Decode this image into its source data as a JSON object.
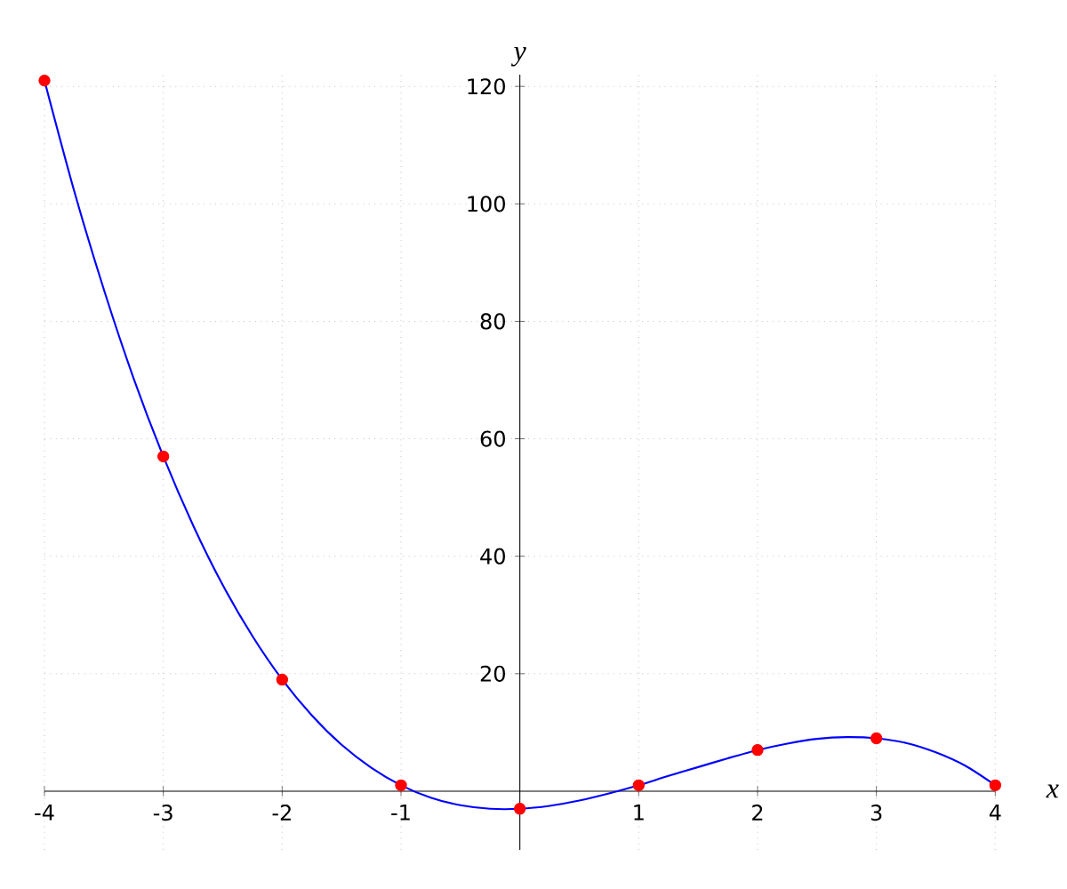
{
  "chart_data": {
    "type": "line",
    "xlabel": "x",
    "ylabel": "y",
    "xlim": [
      -4,
      4
    ],
    "ylim": [
      -10,
      122
    ],
    "xticks": [
      -4,
      -3,
      -2,
      -1,
      1,
      2,
      3,
      4
    ],
    "yticks": [
      20,
      40,
      60,
      80,
      100,
      120
    ],
    "grid": true,
    "series": [
      {
        "color": "#0000ff",
        "marker": "none",
        "x": [
          -4,
          -3.75,
          -3.5,
          -3.25,
          -3,
          -2.75,
          -2.5,
          -2.25,
          -2,
          -1.75,
          -1.5,
          -1.25,
          -1,
          -0.75,
          -0.5,
          -0.25,
          0,
          0.25,
          0.5,
          0.75,
          1,
          1.25,
          1.5,
          1.75,
          2,
          2.25,
          2.5,
          2.75,
          3,
          3.25,
          3.5,
          3.75,
          4
        ],
        "values": [
          121,
          102.2,
          85.4,
          70.3,
          57,
          45.3,
          35.1,
          26.4,
          19,
          12.9,
          7.9,
          4,
          1,
          -1.1,
          -2.4,
          -3,
          -3,
          -2.5,
          -1.6,
          -0.4,
          1,
          2.6,
          4.1,
          5.6,
          7,
          8.1,
          8.9,
          9.2,
          9,
          8.2,
          6.6,
          4.3,
          1
        ]
      },
      {
        "type": "scatter",
        "color": "#ff0000",
        "marker": "circle",
        "x": [
          -4,
          -3,
          -2,
          -1,
          0,
          1,
          2,
          3,
          4
        ],
        "values": [
          121,
          57,
          19,
          1,
          -3,
          1,
          7,
          9,
          1
        ]
      }
    ]
  }
}
